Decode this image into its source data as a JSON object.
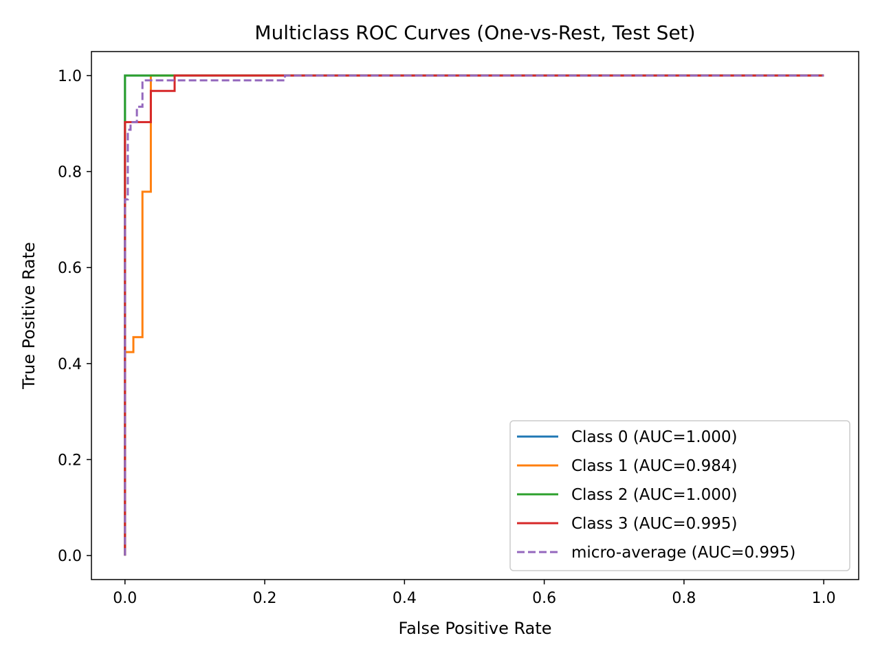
{
  "chart_data": {
    "type": "line",
    "title": "Multiclass ROC Curves (One-vs-Rest, Test Set)",
    "xlabel": "False Positive Rate",
    "ylabel": "True Positive Rate",
    "xlim": [
      -0.048,
      1.05
    ],
    "ylim": [
      -0.05,
      1.05
    ],
    "xticks": [
      0.0,
      0.2,
      0.4,
      0.6,
      0.8,
      1.0
    ],
    "yticks": [
      0.0,
      0.2,
      0.4,
      0.6,
      0.8,
      1.0
    ],
    "xtick_labels": [
      "0.0",
      "0.2",
      "0.4",
      "0.6",
      "0.8",
      "1.0"
    ],
    "ytick_labels": [
      "0.0",
      "0.2",
      "0.4",
      "0.6",
      "0.8",
      "1.0"
    ],
    "grid": false,
    "legend_position": "lower-right",
    "series": [
      {
        "name": "Class 0 (AUC=1.000)",
        "color": "#1f77b4",
        "dash": "solid",
        "x": [
          0,
          0,
          1
        ],
        "y": [
          0,
          1,
          1
        ]
      },
      {
        "name": "Class 1 (AUC=0.984)",
        "color": "#ff7f0e",
        "dash": "solid",
        "x": [
          0,
          0,
          0.012,
          0.012,
          0.025,
          0.025,
          0.037,
          0.037,
          1
        ],
        "y": [
          0,
          0.424,
          0.424,
          0.455,
          0.455,
          0.758,
          0.758,
          1,
          1
        ]
      },
      {
        "name": "Class 2 (AUC=1.000)",
        "color": "#2ca02c",
        "dash": "solid",
        "x": [
          0,
          0,
          1
        ],
        "y": [
          0,
          1,
          1
        ]
      },
      {
        "name": "Class 3 (AUC=0.995)",
        "color": "#d62728",
        "dash": "solid",
        "x": [
          0,
          0,
          0.037,
          0.037,
          0.071,
          0.071,
          1
        ],
        "y": [
          0,
          0.903,
          0.903,
          0.968,
          0.968,
          1,
          1
        ]
      },
      {
        "name": "micro-average (AUC=0.995)",
        "color": "#9467bd",
        "dash": "dashed",
        "x": [
          0,
          0,
          0.004,
          0.004,
          0.008,
          0.008,
          0.017,
          0.017,
          0.025,
          0.025,
          0.229,
          0.229,
          1
        ],
        "y": [
          0,
          0.742,
          0.742,
          0.887,
          0.887,
          0.903,
          0.903,
          0.935,
          0.935,
          0.99,
          0.99,
          1,
          1
        ]
      }
    ]
  }
}
